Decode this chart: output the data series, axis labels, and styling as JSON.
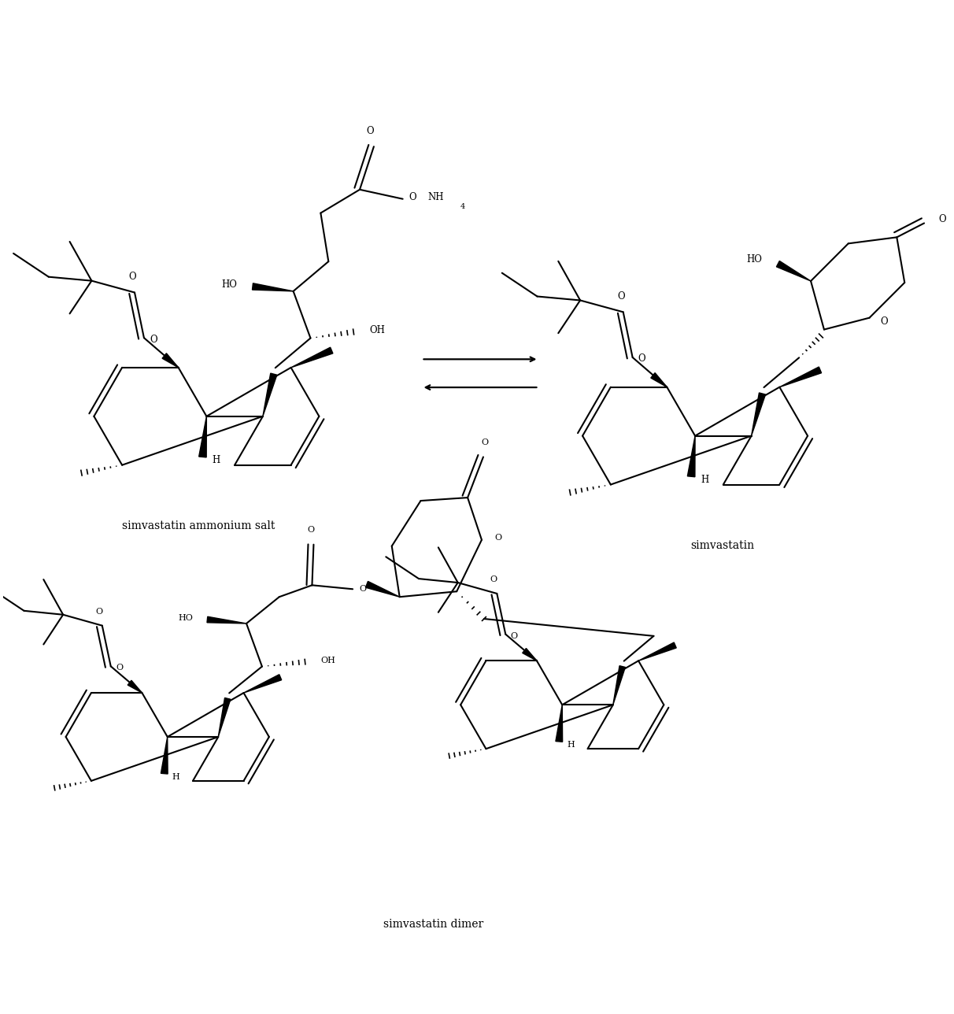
{
  "background": "#ffffff",
  "line_color": "#000000",
  "label_salt": "simvastatin ammonium salt",
  "label_simv": "simvastatin",
  "label_dimer": "simvastatin dimer",
  "figsize": [
    12.12,
    12.88
  ],
  "dpi": 100
}
